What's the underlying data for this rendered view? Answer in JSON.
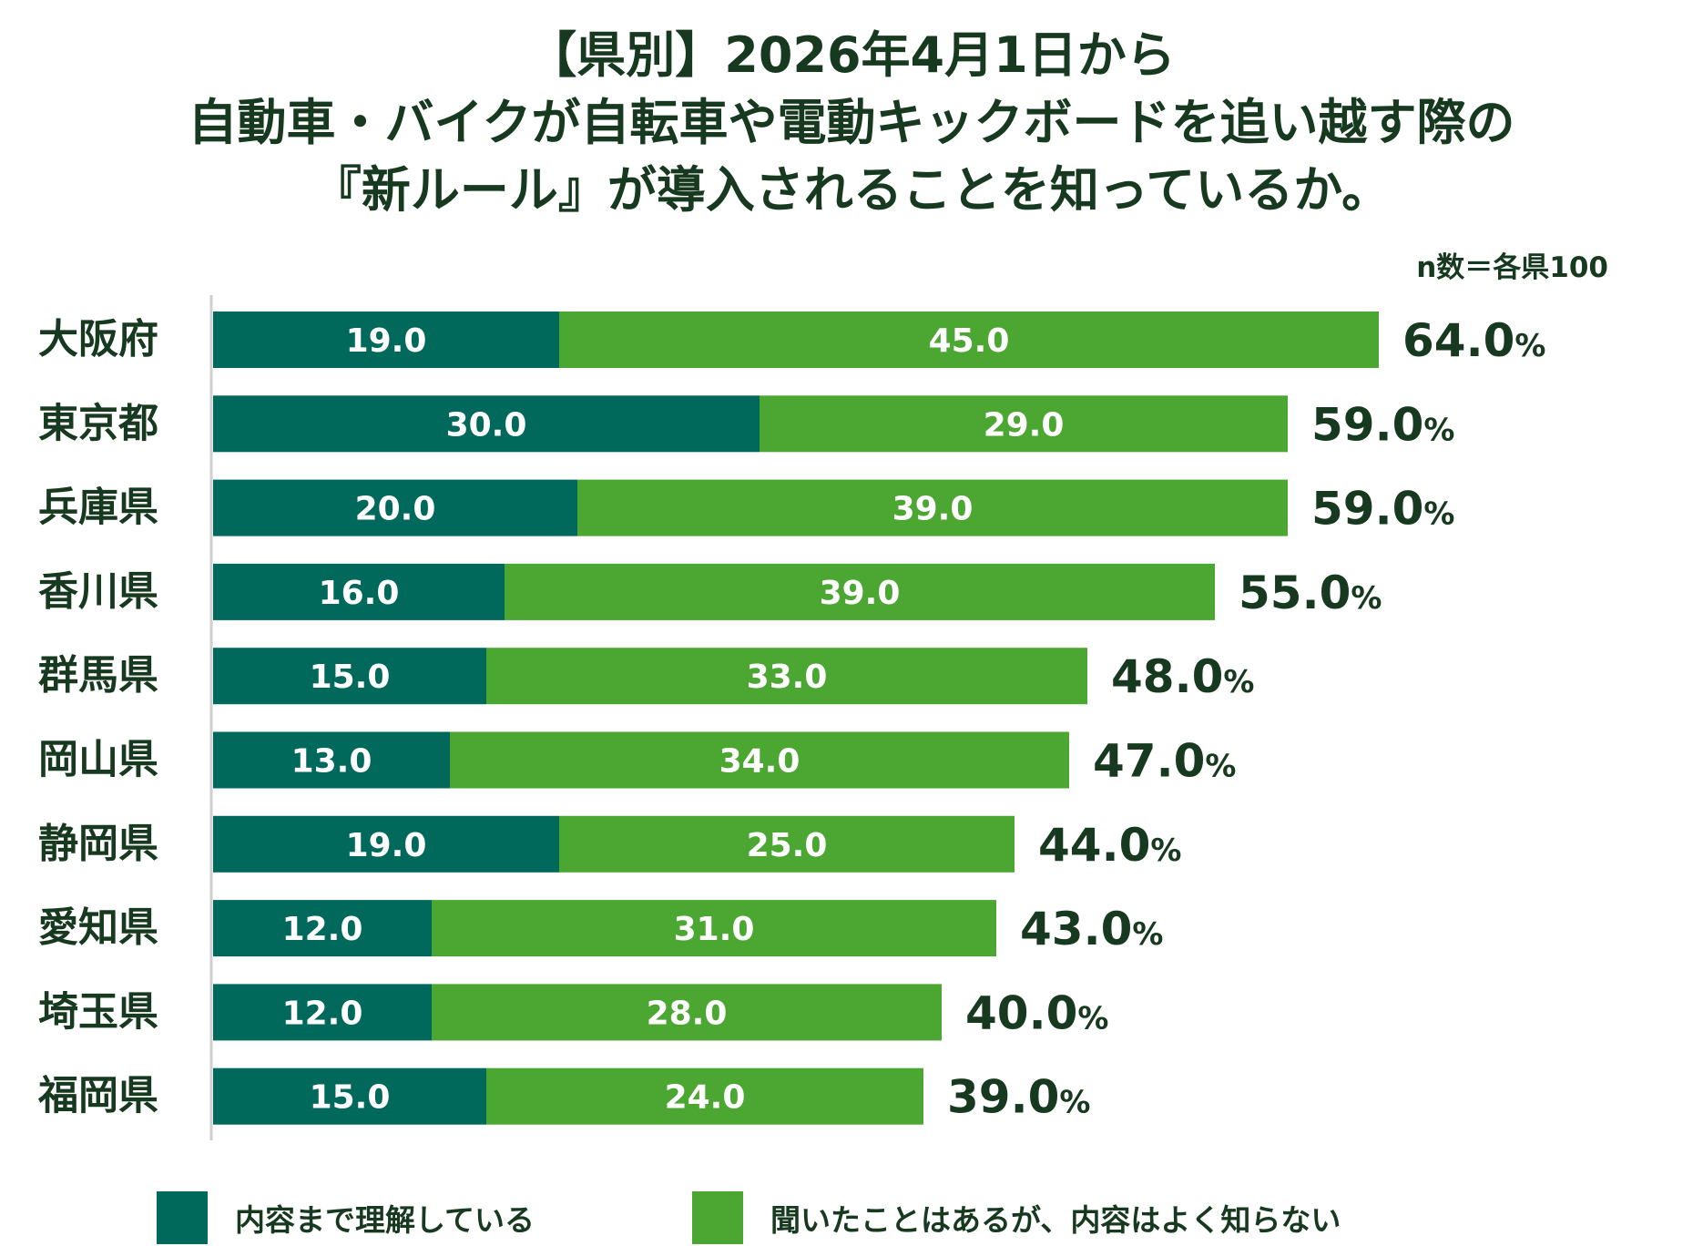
{
  "title": {
    "line1": "【県別】2026年4月1日から",
    "line2": "自動車・バイクが自転車や電動キックボードを追い越す際の",
    "line3": "『新ルール』が導入されることを知っているか。"
  },
  "note": "n数＝各県100",
  "colors": {
    "series1": "#00695c",
    "series2": "#4ca632",
    "text": "#17391f",
    "axis": "#cfcfcf"
  },
  "legend": {
    "items": [
      {
        "label": "内容まで理解している"
      },
      {
        "label": "聞いたことはあるが、内容はよく知らない"
      }
    ]
  },
  "chart_data": {
    "type": "bar",
    "orientation": "horizontal",
    "stacked": true,
    "title": "【県別】2026年4月1日から自動車・バイクが自転車や電動キックボードを追い越す際の『新ルール』が導入されることを知っているか。",
    "note": "n数＝各県100",
    "xlim": [
      0,
      100
    ],
    "categories": [
      "大阪府",
      "東京都",
      "兵庫県",
      "香川県",
      "群馬県",
      "岡山県",
      "静岡県",
      "愛知県",
      "埼玉県",
      "福岡県"
    ],
    "series": [
      {
        "name": "内容まで理解している",
        "values": [
          19.0,
          30.0,
          20.0,
          16.0,
          15.0,
          13.0,
          19.0,
          12.0,
          12.0,
          15.0
        ]
      },
      {
        "name": "聞いたことはあるが、内容はよく知らない",
        "values": [
          45.0,
          29.0,
          39.0,
          39.0,
          33.0,
          34.0,
          25.0,
          31.0,
          28.0,
          24.0
        ]
      }
    ],
    "totals": [
      64.0,
      59.0,
      59.0,
      55.0,
      48.0,
      47.0,
      44.0,
      43.0,
      40.0,
      39.0
    ],
    "total_unit": "%",
    "grid": false,
    "legend_position": "bottom"
  }
}
